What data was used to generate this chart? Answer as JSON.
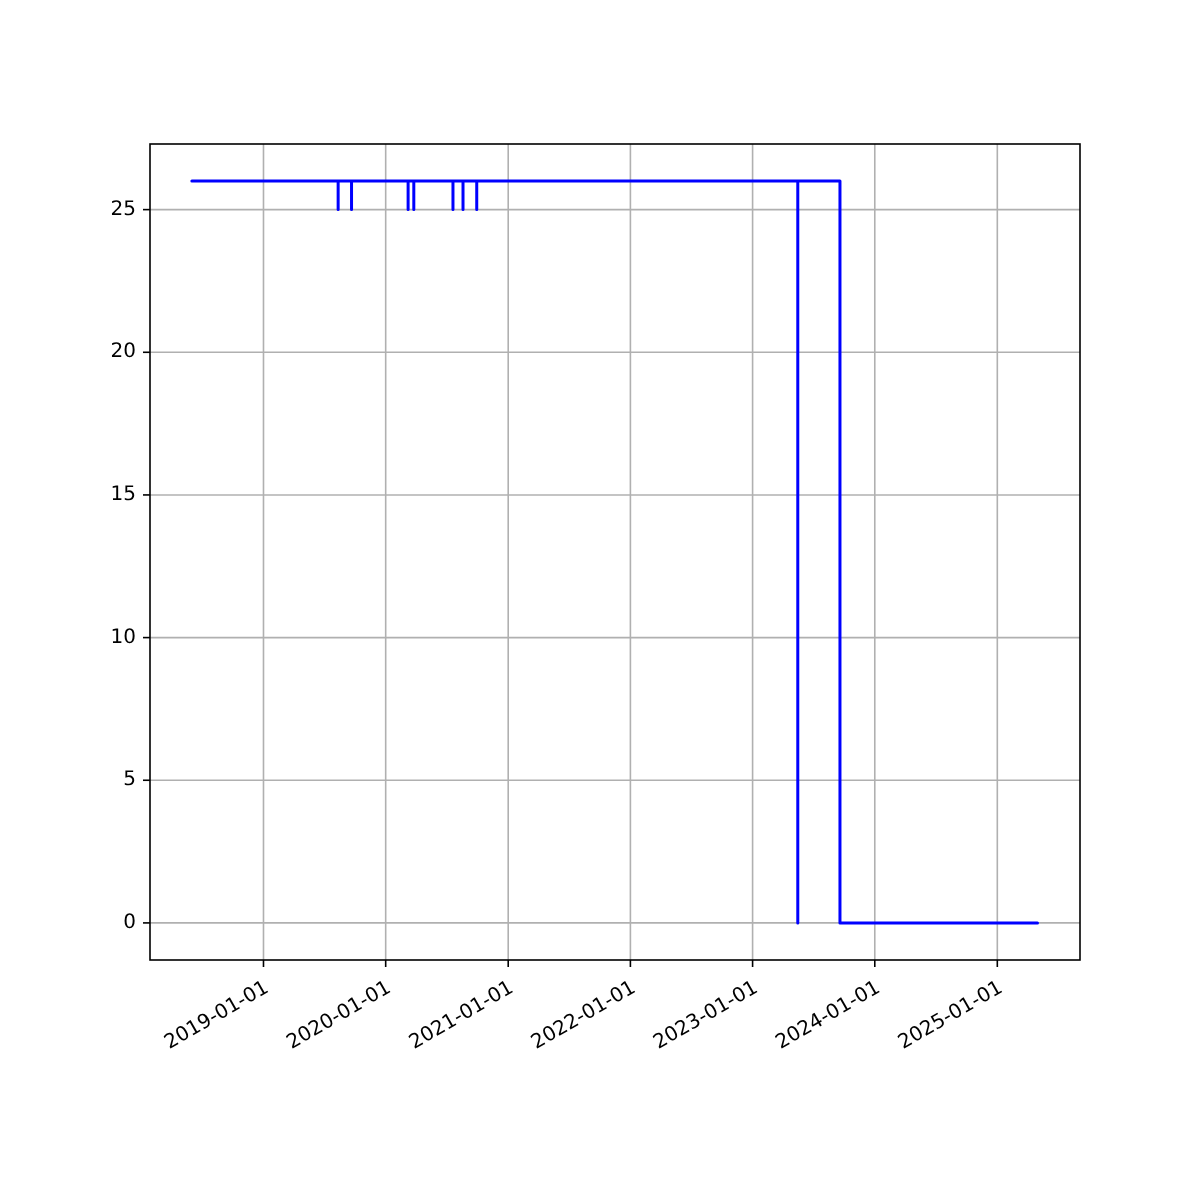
{
  "chart_data": {
    "type": "line",
    "x": [
      "2018-06-01",
      "2019-08-12",
      "2019-08-12",
      "2019-08-12",
      "2019-09-21",
      "2019-09-21",
      "2019-09-21",
      "2020-03-08",
      "2020-03-08",
      "2020-03-08",
      "2020-03-25",
      "2020-03-25",
      "2020-03-25",
      "2020-07-20",
      "2020-07-20",
      "2020-07-20",
      "2020-08-19",
      "2020-08-19",
      "2020-08-19",
      "2020-09-29",
      "2020-09-29",
      "2020-09-29",
      "2023-05-16",
      "2023-05-16",
      "2023-05-16",
      "2023-09-19",
      "2023-09-19",
      "2025-05-01"
    ],
    "series": [
      {
        "color": "#0000ff",
        "values": [
          26,
          26,
          25,
          26,
          26,
          25,
          26,
          26,
          25,
          26,
          26,
          25,
          26,
          26,
          25,
          26,
          26,
          25,
          26,
          26,
          25,
          26,
          26,
          0,
          26,
          26,
          0,
          0
        ]
      }
    ],
    "xlim": [
      "2018-01-27",
      "2025-09-05"
    ],
    "xticks": [
      "2019-01-01",
      "2020-01-01",
      "2021-01-01",
      "2022-01-01",
      "2023-01-01",
      "2024-01-01",
      "2025-01-01"
    ],
    "ylim": [
      -1.3,
      27.3
    ],
    "yticks": [
      0,
      5,
      10,
      15,
      20,
      25
    ],
    "grid": true,
    "line_style": "solid",
    "marker": "none"
  }
}
